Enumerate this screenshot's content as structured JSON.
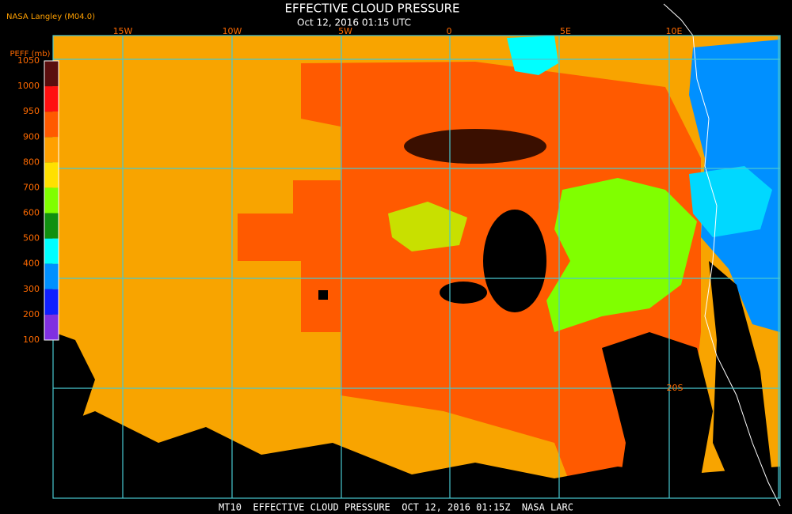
{
  "header": {
    "source": "NASA Langley (M04.0)",
    "title": "EFFECTIVE CLOUD PRESSURE",
    "subtitle": "Oct 12, 2016 01:15 UTC"
  },
  "legend": {
    "title": "PEFF (mb)",
    "labels": [
      "1050",
      "1000",
      "950",
      "900",
      "800",
      "700",
      "600",
      "500",
      "400",
      "300",
      "200",
      "100"
    ],
    "colors": [
      "#5a0e0e",
      "#ff1010",
      "#ff5a00",
      "#ffa000",
      "#ffe000",
      "#80ff00",
      "#109010",
      "#00ffff",
      "#0090ff",
      "#1020ff",
      "#8030e0"
    ]
  },
  "grid_labels": [
    "15W",
    "10W",
    "5W",
    "0",
    "5E",
    "10E",
    "20S"
  ],
  "footer": "MT10  EFFECTIVE CLOUD PRESSURE  OCT 12, 2016 01:15Z  NASA LARC"
}
